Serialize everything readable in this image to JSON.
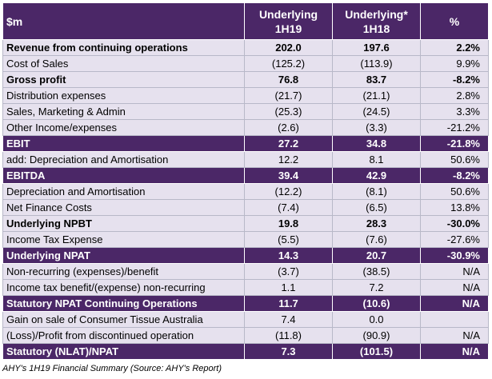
{
  "header": {
    "label": "$m",
    "col1_line1": "Underlying",
    "col1_line2": "1H19",
    "col2_line1": "Underlying*",
    "col2_line2": "1H18",
    "col3": "%"
  },
  "rows": [
    {
      "label": "Revenue from continuing operations",
      "v1": "202.0",
      "v2": "197.6",
      "pct": "2.2%",
      "style": "bold"
    },
    {
      "label": "Cost of Sales",
      "v1": "(125.2)",
      "v2": "(113.9)",
      "pct": "9.9%",
      "style": "normal"
    },
    {
      "label": "Gross profit",
      "v1": "76.8",
      "v2": "83.7",
      "pct": "-8.2%",
      "style": "bold"
    },
    {
      "label": "Distribution expenses",
      "v1": "(21.7)",
      "v2": "(21.1)",
      "pct": "2.8%",
      "style": "normal"
    },
    {
      "label": "Sales, Marketing & Admin",
      "v1": "(25.3)",
      "v2": "(24.5)",
      "pct": "3.3%",
      "style": "normal"
    },
    {
      "label": "Other Income/expenses",
      "v1": "(2.6)",
      "v2": "(3.3)",
      "pct": "-21.2%",
      "style": "normal"
    },
    {
      "label": "EBIT",
      "v1": "27.2",
      "v2": "34.8",
      "pct": "-21.8%",
      "style": "dark"
    },
    {
      "label": "add: Depreciation and Amortisation",
      "v1": "12.2",
      "v2": "8.1",
      "pct": "50.6%",
      "style": "normal"
    },
    {
      "label": "EBITDA",
      "v1": "39.4",
      "v2": "42.9",
      "pct": "-8.2%",
      "style": "dark"
    },
    {
      "label": "Depreciation and Amortisation",
      "v1": "(12.2)",
      "v2": "(8.1)",
      "pct": "50.6%",
      "style": "normal"
    },
    {
      "label": "Net Finance Costs",
      "v1": "(7.4)",
      "v2": "(6.5)",
      "pct": "13.8%",
      "style": "normal"
    },
    {
      "label": "Underlying NPBT",
      "v1": "19.8",
      "v2": "28.3",
      "pct": "-30.0%",
      "style": "bold"
    },
    {
      "label": "Income Tax Expense",
      "v1": "(5.5)",
      "v2": "(7.6)",
      "pct": "-27.6%",
      "style": "normal"
    },
    {
      "label": "Underlying NPAT",
      "v1": "14.3",
      "v2": "20.7",
      "pct": "-30.9%",
      "style": "dark"
    },
    {
      "label": "Non-recurring (expenses)/benefit",
      "v1": "(3.7)",
      "v2": "(38.5)",
      "pct": "N/A",
      "style": "normal"
    },
    {
      "label": "Income tax benefit/(expense) non-recurring",
      "v1": "1.1",
      "v2": "7.2",
      "pct": "N/A",
      "style": "normal"
    },
    {
      "label": "Statutory NPAT Continuing Operations",
      "v1": "11.7",
      "v2": "(10.6)",
      "pct": "N/A",
      "style": "dark"
    },
    {
      "label": "Gain on sale of Consumer Tissue Australia",
      "v1": "7.4",
      "v2": "0.0",
      "pct": "",
      "style": "normal"
    },
    {
      "label": "(Loss)/Profit from discontinued operation",
      "v1": "(11.8)",
      "v2": "(90.9)",
      "pct": "N/A",
      "style": "normal"
    },
    {
      "label": "Statutory (NLAT)/NPAT",
      "v1": "7.3",
      "v2": "(101.5)",
      "pct": "N/A",
      "style": "dark"
    }
  ],
  "caption": "AHY's 1H19 Financial Summary (Source: AHY's Report)",
  "colors": {
    "header_bg": "#4b2767",
    "row_bg": "#e6e1ee",
    "header_text": "#ffffff"
  }
}
